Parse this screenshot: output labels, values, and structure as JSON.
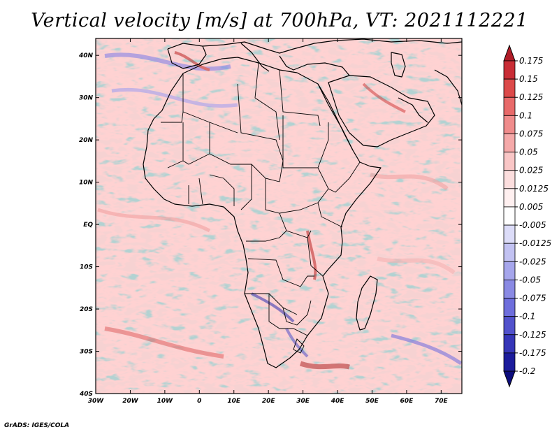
{
  "title": "Vertical velocity [m/s] at 700hPa, VT: 2021112221",
  "credit": "GrADS: IGES/COLA",
  "map": {
    "lat_labels": [
      "40N",
      "30N",
      "20N",
      "10N",
      "EQ",
      "10S",
      "20S",
      "30S",
      "40S"
    ],
    "lon_labels": [
      "30W",
      "20W",
      "10W",
      "0",
      "10E",
      "20E",
      "30E",
      "40E",
      "50E",
      "60E",
      "70E"
    ],
    "lon_range": [
      -30,
      76
    ],
    "lat_range": [
      -40,
      44
    ]
  },
  "colorbar": {
    "labels": [
      "0.175",
      "0.15",
      "0.125",
      "0.1",
      "0.075",
      "0.05",
      "0.025",
      "0.0125",
      "0.005",
      "-0.005",
      "-0.0125",
      "-0.025",
      "-0.05",
      "-0.075",
      "-0.1",
      "-0.125",
      "-0.175",
      "-0.2"
    ],
    "colors": [
      "#b01c28",
      "#c92d36",
      "#dc4a4a",
      "#e86a6a",
      "#f08c8c",
      "#f5a9a9",
      "#f9c6c6",
      "#fcdede",
      "#fff0f0",
      "#ffffff",
      "#dcdcf8",
      "#c2c2f2",
      "#a6a6ec",
      "#8a8ae4",
      "#6e6edc",
      "#5252cc",
      "#3636b8",
      "#1c1c9c",
      "#0c0c7c"
    ]
  }
}
